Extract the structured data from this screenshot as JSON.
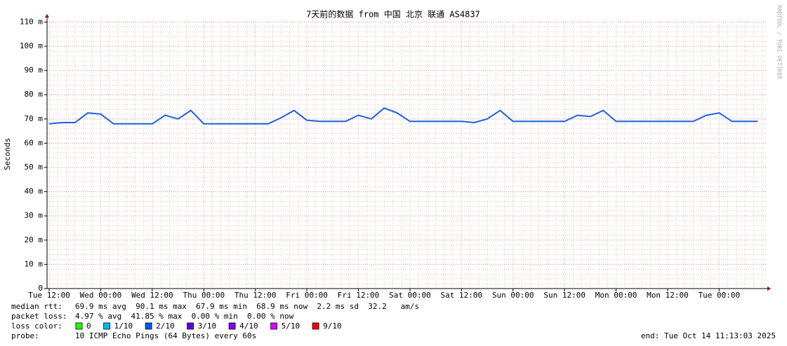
{
  "chart_data": {
    "type": "line",
    "title": "7天前的数据 from 中国 北京 联通 AS4837",
    "y_label": "Seconds",
    "watermark": "RRDTOOL / TOBI OETIKER",
    "xlim": [
      "2025-10-07T11:30",
      "2025-10-14T11:13"
    ],
    "xticks": [
      {
        "value": "2025-10-07T12:00",
        "label": "Tue 12:00"
      },
      {
        "value": "2025-10-08T00:00",
        "label": "Wed 00:00"
      },
      {
        "value": "2025-10-08T12:00",
        "label": "Wed 12:00"
      },
      {
        "value": "2025-10-09T00:00",
        "label": "Thu 00:00"
      },
      {
        "value": "2025-10-09T12:00",
        "label": "Thu 12:00"
      },
      {
        "value": "2025-10-10T00:00",
        "label": "Fri 00:00"
      },
      {
        "value": "2025-10-10T12:00",
        "label": "Fri 12:00"
      },
      {
        "value": "2025-10-11T00:00",
        "label": "Sat 00:00"
      },
      {
        "value": "2025-10-11T12:00",
        "label": "Sat 12:00"
      },
      {
        "value": "2025-10-12T00:00",
        "label": "Sun 00:00"
      },
      {
        "value": "2025-10-12T12:00",
        "label": "Sun 12:00"
      },
      {
        "value": "2025-10-13T00:00",
        "label": "Mon 00:00"
      },
      {
        "value": "2025-10-13T12:00",
        "label": "Mon 12:00"
      },
      {
        "value": "2025-10-14T00:00",
        "label": "Tue 00:00"
      }
    ],
    "ylim": [
      0,
      0.111
    ],
    "yticks": [
      0,
      {
        "value": 0.01,
        "label": "10 m"
      },
      {
        "value": 0.02,
        "label": "20 m"
      },
      {
        "value": 0.03,
        "label": "30 m"
      },
      {
        "value": 0.04,
        "label": "40 m"
      },
      {
        "value": 0.05,
        "label": "50 m"
      },
      {
        "value": 0.06,
        "label": "60 m"
      },
      {
        "value": 0.07,
        "label": "70 m"
      },
      {
        "value": 0.08,
        "label": "80 m"
      },
      {
        "value": 0.09,
        "label": "90 m"
      },
      {
        "value": 0.1,
        "label": "100 m"
      },
      {
        "value": 0.11,
        "label": "110 m"
      }
    ],
    "grid": true,
    "x": [
      "2025-10-07T12:00",
      "2025-10-07T15:00",
      "2025-10-07T18:00",
      "2025-10-07T21:00",
      "2025-10-08T00:00",
      "2025-10-08T03:00",
      "2025-10-08T06:00",
      "2025-10-08T09:00",
      "2025-10-08T12:00",
      "2025-10-08T15:00",
      "2025-10-08T18:00",
      "2025-10-08T21:00",
      "2025-10-09T00:00",
      "2025-10-09T03:00",
      "2025-10-09T06:00",
      "2025-10-09T09:00",
      "2025-10-09T12:00",
      "2025-10-09T15:00",
      "2025-10-09T18:00",
      "2025-10-09T21:00",
      "2025-10-10T00:00",
      "2025-10-10T03:00",
      "2025-10-10T06:00",
      "2025-10-10T09:00",
      "2025-10-10T12:00",
      "2025-10-10T15:00",
      "2025-10-10T18:00",
      "2025-10-10T21:00",
      "2025-10-11T00:00",
      "2025-10-11T03:00",
      "2025-10-11T06:00",
      "2025-10-11T09:00",
      "2025-10-11T12:00",
      "2025-10-11T15:00",
      "2025-10-11T18:00",
      "2025-10-11T21:00",
      "2025-10-12T00:00",
      "2025-10-12T03:00",
      "2025-10-12T06:00",
      "2025-10-12T09:00",
      "2025-10-12T12:00",
      "2025-10-12T15:00",
      "2025-10-12T18:00",
      "2025-10-12T21:00",
      "2025-10-13T00:00",
      "2025-10-13T03:00",
      "2025-10-13T06:00",
      "2025-10-13T09:00",
      "2025-10-13T12:00",
      "2025-10-13T15:00",
      "2025-10-13T18:00",
      "2025-10-13T21:00",
      "2025-10-14T00:00",
      "2025-10-14T03:00",
      "2025-10-14T06:00",
      "2025-10-14T09:00"
    ],
    "series": [
      {
        "name": "median rtt:",
        "color": "#1f5fe0",
        "values": [
          0.068,
          0.0685,
          0.0685,
          0.0725,
          0.072,
          0.068,
          0.068,
          0.068,
          0.068,
          0.0715,
          0.07,
          0.0735,
          0.068,
          0.068,
          0.068,
          0.068,
          0.068,
          0.068,
          0.0705,
          0.0735,
          0.0695,
          0.069,
          0.069,
          0.069,
          0.0715,
          0.07,
          0.0745,
          0.0725,
          0.069,
          0.069,
          0.069,
          0.069,
          0.069,
          0.0685,
          0.07,
          0.0735,
          0.069,
          0.069,
          0.069,
          0.069,
          0.069,
          0.0715,
          0.071,
          0.0735,
          0.069,
          0.069,
          0.069,
          0.069,
          0.069,
          0.069,
          0.069,
          0.0715,
          0.0725,
          0.069,
          0.069,
          0.069
        ]
      }
    ],
    "stats": [
      {
        "label": "median rtt:",
        "text": "69.9 ms avg  90.1 ms max  67.9 ms min  68.9 ms now  2.2 ms sd  32.2   am/s"
      },
      {
        "label": "packet loss:",
        "text": "4.97 % avg  41.85 % max  0.00 % min  0.00 % now"
      }
    ],
    "loss_legend_label": "loss color:",
    "loss_colors": [
      {
        "label": "0",
        "color": "#26ff00"
      },
      {
        "label": "1/10",
        "color": "#00b8ff"
      },
      {
        "label": "2/10",
        "color": "#0059ff"
      },
      {
        "label": "3/10",
        "color": "#5e00ff"
      },
      {
        "label": "4/10",
        "color": "#7e00ff"
      },
      {
        "label": "5/10",
        "color": "#dd00ff"
      },
      {
        "label": "9/10",
        "color": "#ff0000"
      }
    ],
    "probe": {
      "label": "probe:",
      "text": "10 ICMP Echo Pings (64 Bytes) every 60s"
    },
    "end": "end: Tue Oct 14 11:13:03 2025"
  }
}
